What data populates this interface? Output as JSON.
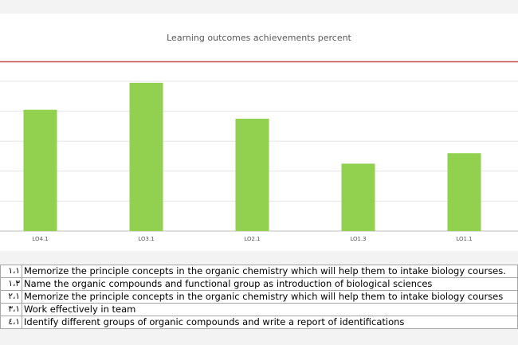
{
  "chart_data": {
    "type": "bar",
    "title": "Learning outcomes achievements percent",
    "categories": [
      "LO4.1",
      "LO3.1",
      "LO2.1",
      "LO1.3",
      "LO1.1"
    ],
    "values": [
      81,
      99,
      75,
      45,
      52
    ],
    "ylim": [
      0,
      105
    ],
    "target": 113,
    "grid": true,
    "colors": {
      "bar": "#92d050",
      "target_line": "#c0504d",
      "grid": "#e6e6e6",
      "axis": "#bfbfbf"
    }
  },
  "outcomes": [
    {
      "code": "١،١",
      "text": "Memorize the  principle concepts in the organic chemistry which will help them to intake biology courses."
    },
    {
      "code": "١،٣",
      "text": "Name the organic compounds and functional group as introduction of biological sciences"
    },
    {
      "code": "٢،١",
      "text": "Memorize the  principle concepts in the organic chemistry which will help them to intake biology courses"
    },
    {
      "code": "٣،١",
      "text": "Work effectively in team"
    },
    {
      "code": "٤،١",
      "text": "Identify  different groups of organic compounds and write a report of identifications"
    }
  ]
}
